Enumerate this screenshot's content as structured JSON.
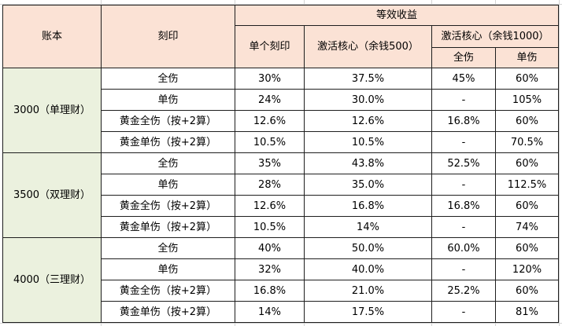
{
  "header": {
    "account": "账本",
    "imprint": "刻印",
    "benefit": "等效收益",
    "single_imprint": "单个刻印",
    "core500": "激活核心（余钱500）",
    "core1000": "激活核心（余钱1000）",
    "full": "全伤",
    "single": "单伤"
  },
  "groups": [
    {
      "label": "3000（单理财）",
      "rows": [
        {
          "imprint": "全伤",
          "single": "30%",
          "core500": "37.5%",
          "full1000": "45%",
          "single1000": "60%"
        },
        {
          "imprint": "单伤",
          "single": "24%",
          "core500": "30.0%",
          "full1000": "-",
          "single1000": "105%"
        },
        {
          "imprint": "黄金全伤（按+2算）",
          "single": "12.6%",
          "core500": "12.6%",
          "full1000": "16.8%",
          "single1000": "60%"
        },
        {
          "imprint": "黄金单伤（按+2算）",
          "single": "10.5%",
          "core500": "10.5%",
          "full1000": "-",
          "single1000": "70.5%"
        }
      ]
    },
    {
      "label": "3500（双理财）",
      "rows": [
        {
          "imprint": "全伤",
          "single": "35%",
          "core500": "43.8%",
          "full1000": "52.5%",
          "single1000": "60%"
        },
        {
          "imprint": "单伤",
          "single": "28%",
          "core500": "35.0%",
          "full1000": "-",
          "single1000": "112.5%"
        },
        {
          "imprint": "黄金全伤（按+2算）",
          "single": "12.6%",
          "core500": "16.8%",
          "full1000": "16.8%",
          "single1000": "60%"
        },
        {
          "imprint": "黄金单伤（按+2算）",
          "single": "10.5%",
          "core500": "14%",
          "full1000": "-",
          "single1000": "74%"
        }
      ]
    },
    {
      "label": "4000（三理财）",
      "rows": [
        {
          "imprint": "全伤",
          "single": "40%",
          "core500": "50.0%",
          "full1000": "60.0%",
          "single1000": "60%"
        },
        {
          "imprint": "单伤",
          "single": "32%",
          "core500": "40.0%",
          "full1000": "-",
          "single1000": "120%"
        },
        {
          "imprint": "黄金全伤（按+2算）",
          "single": "16.8%",
          "core500": "21.0%",
          "full1000": "25.2%",
          "single1000": "60%"
        },
        {
          "imprint": "黄金单伤（按+2算）",
          "single": "14%",
          "core500": "17.5%",
          "full1000": "-",
          "single1000": "81%"
        }
      ]
    }
  ]
}
